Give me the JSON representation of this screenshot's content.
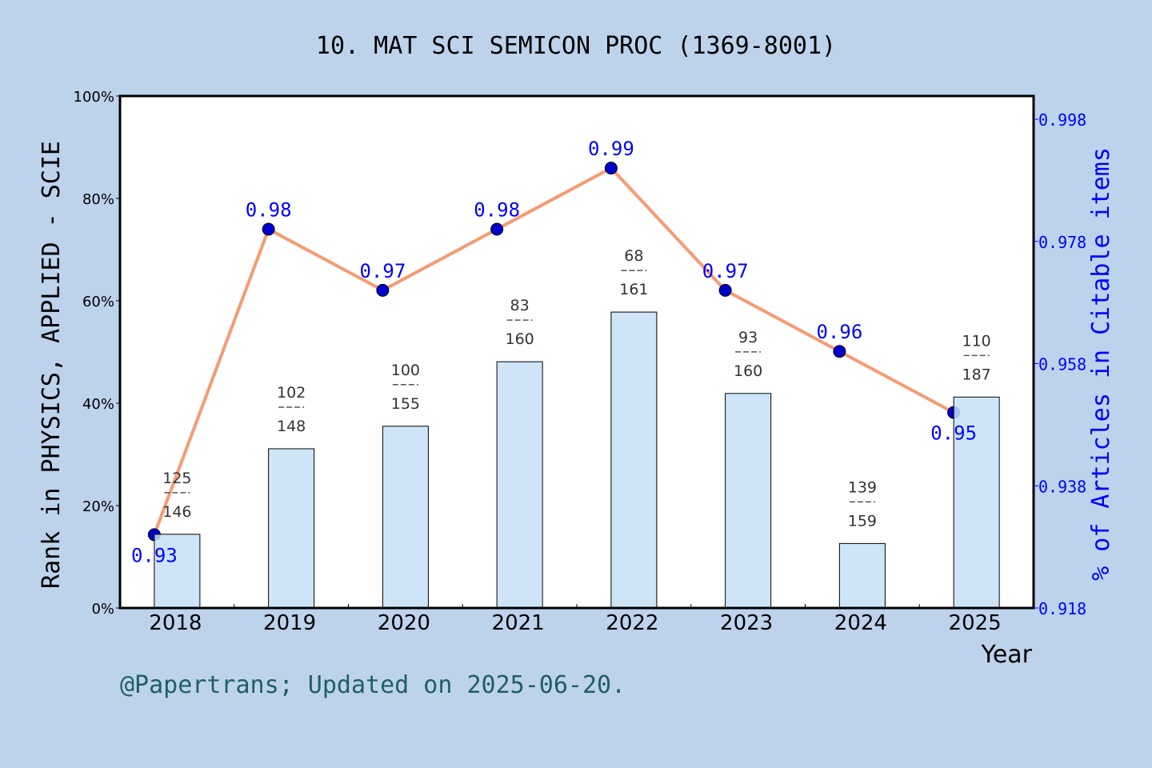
{
  "chart_data": {
    "type": "bar+line",
    "title": "10. MAT SCI SEMICON PROC (1369-8001)",
    "xlabel": "Year",
    "ylabel_left": "Rank in PHYSICS, APPLIED - SCIE",
    "ylabel_right": "% of Articles in Citable items",
    "categories": [
      "2018",
      "2019",
      "2020",
      "2021",
      "2022",
      "2023",
      "2024",
      "2025"
    ],
    "left_axis": {
      "ylim": [
        0,
        100
      ],
      "ticks": [
        "0%",
        "20%",
        "40%",
        "60%",
        "80%",
        "100%"
      ],
      "tick_values": [
        0,
        20,
        40,
        60,
        80,
        100
      ]
    },
    "right_axis": {
      "ylim": [
        0.918,
        1.0018
      ],
      "ticks": [
        "0.918",
        "0.938",
        "0.958",
        "0.978",
        "0.998"
      ],
      "tick_values": [
        0.918,
        0.938,
        0.958,
        0.978,
        0.998
      ]
    },
    "bars": {
      "rank": [
        125,
        102,
        100,
        83,
        68,
        93,
        139,
        110
      ],
      "total": [
        146,
        148,
        155,
        160,
        161,
        160,
        159,
        187
      ],
      "values_percent": [
        14.4,
        31.1,
        35.5,
        48.1,
        57.8,
        41.9,
        12.6,
        41.2
      ],
      "color": "#c5e0f7"
    },
    "line": {
      "values": [
        0.93,
        0.98,
        0.97,
        0.98,
        0.99,
        0.97,
        0.96,
        0.95
      ],
      "labels": [
        "0.93",
        "0.98",
        "0.97",
        "0.98",
        "0.99",
        "0.97",
        "0.96",
        "0.95"
      ],
      "line_color": "#f79a72",
      "marker_color": "#0000cc",
      "label_color": "#0000ff"
    },
    "grid": false,
    "footer": "@Papertrans; Updated on 2025-06-20."
  }
}
